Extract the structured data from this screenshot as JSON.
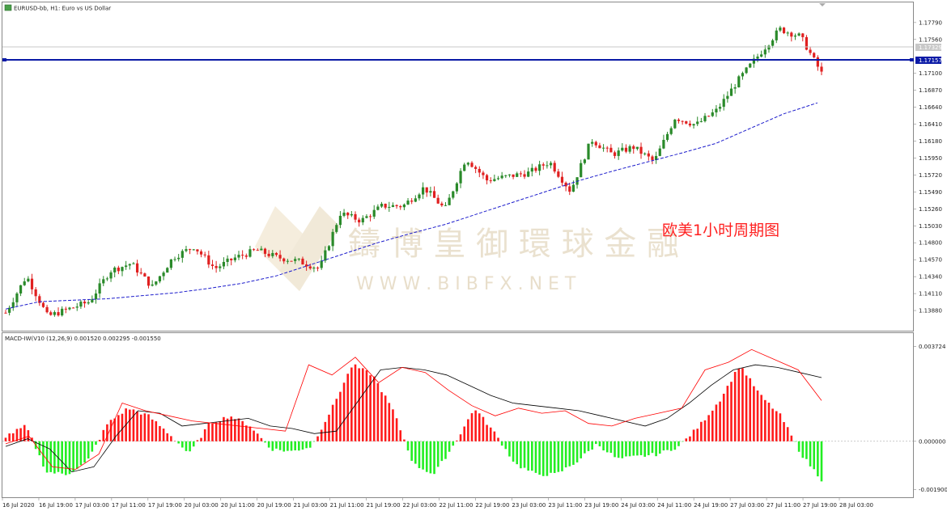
{
  "header": {
    "symbol_line": "EURUSD-bb, H1: Euro vs US Dollar"
  },
  "annotation": "欧美1小时周期图",
  "watermark": {
    "cn": "鑄 博 皇 御 環 球 金 融",
    "url": "W W W . B I B F X . N E T"
  },
  "colors": {
    "bull": "#2a8a2a",
    "bear": "#e02020",
    "ma": "#1c1ccc",
    "hline": "#0a1aa6",
    "price_tag_bg": "#0a1aa6",
    "macd_pos": "#ff1a1a",
    "macd_neg": "#22ee22",
    "signal_black": "#000000",
    "signal_red": "#ff0000"
  },
  "chart_data": [
    {
      "type": "candlestick",
      "title": "EURUSD-bb, H1: Euro vs US Dollar",
      "y_axis_ticks": [
        "1.17790",
        "1.17560",
        "1.17100",
        "1.16870",
        "1.16640",
        "1.16410",
        "1.16180",
        "1.15950",
        "1.15720",
        "1.15490",
        "1.15260",
        "1.15030",
        "1.14800",
        "1.14570",
        "1.14340",
        "1.14110",
        "1.13880"
      ],
      "ylim": [
        1.1365,
        1.1803
      ],
      "current_price_label": "1.17329",
      "horizontal_line_label": "1.17157",
      "horizontal_line_value": 1.17157,
      "x_tick_labels": [
        "16 Jul 2020",
        "16 Jul 19:00",
        "17 Jul 03:00",
        "17 Jul 11:00",
        "17 Jul 19:00",
        "20 Jul 03:00",
        "20 Jul 11:00",
        "20 Jul 19:00",
        "21 Jul 03:00",
        "21 Jul 11:00",
        "21 Jul 19:00",
        "22 Jul 03:00",
        "22 Jul 11:00",
        "22 Jul 19:00",
        "23 Jul 03:00",
        "23 Jul 11:00",
        "23 Jul 19:00",
        "24 Jul 03:00",
        "24 Jul 11:00",
        "24 Jul 19:00",
        "27 Jul 03:00",
        "27 Jul 11:00",
        "27 Jul 19:00",
        "28 Jul 03:00"
      ],
      "close_path": [
        1.1385,
        1.1435,
        1.138,
        1.139,
        1.14,
        1.1442,
        1.1452,
        1.142,
        1.146,
        1.1475,
        1.1445,
        1.146,
        1.147,
        1.146,
        1.1455,
        1.1445,
        1.152,
        1.151,
        1.153,
        1.153,
        1.1555,
        1.1525,
        1.1595,
        1.1565,
        1.157,
        1.1575,
        1.159,
        1.155,
        1.162,
        1.16,
        1.161,
        1.159,
        1.165,
        1.164,
        1.166,
        1.17,
        1.1735,
        1.177,
        1.176,
        1.171
      ],
      "ma_values": [
        1.139,
        1.14,
        1.1402,
        1.1404,
        1.1408,
        1.1412,
        1.1418,
        1.1425,
        1.1435,
        1.145,
        1.1465,
        1.148,
        1.1493,
        1.1505,
        1.152,
        1.1535,
        1.155,
        1.1565,
        1.1578,
        1.159,
        1.1602,
        1.1615,
        1.1635,
        1.1655,
        1.167
      ]
    },
    {
      "type": "histogram",
      "title": "MACD-IW(V10 (12,26,9) 0.001520 0.002295 -0.001550",
      "y_axis_ticks": [
        "0.003724",
        "0.000000",
        "-0.001900"
      ],
      "ylim": [
        -0.0021,
        0.0038
      ],
      "series": [
        {
          "name": "MACD",
          "values": [
            0.0002,
            0.0006,
            -0.0012,
            -0.0013,
            -0.0008,
            0.0007,
            0.0013,
            0.001,
            0.0003,
            -0.0005,
            0.0007,
            0.001,
            0.0006,
            -0.0003,
            -0.0004,
            -0.0002,
            0.0013,
            0.003,
            0.0026,
            0.0012,
            -0.0009,
            -0.0013,
            -0.0001,
            0.0013,
            0.0003,
            -0.0009,
            -0.0013,
            -0.0013,
            -0.0008,
            -0.0001,
            -0.0007,
            -0.0006,
            -0.0005,
            -0.0002,
            0.0006,
            0.0016,
            0.003,
            0.0018,
            0.001,
            -0.0005,
            -0.0015
          ]
        },
        {
          "name": "Signal",
          "values": [
            -0.0002,
            0.0001,
            -0.0003,
            -0.0012,
            -0.001,
            0.0002,
            0.0012,
            0.0011,
            0.0006,
            0.0007,
            0.0008,
            0.0009,
            0.0006,
            0.0005,
            0.0003,
            0.0004,
            0.0016,
            0.0028,
            0.0029,
            0.0028,
            0.0026,
            0.0022,
            0.0018,
            0.0015,
            0.0014,
            0.0013,
            0.0012,
            0.001,
            0.0008,
            0.0006,
            0.0009,
            0.0015,
            0.0022,
            0.0028,
            0.003,
            0.0029,
            0.0027,
            0.0025
          ]
        },
        {
          "name": "Signal2",
          "values": [
            -0.0001,
            0.0002,
            -0.001,
            -0.0011,
            -0.0005,
            0.0015,
            0.0012,
            0.001,
            0.0008,
            0.0007,
            0.0006,
            0.0005,
            0.0004,
            0.003,
            0.0026,
            0.0033,
            0.0023,
            0.0029,
            0.0027,
            0.002,
            0.0014,
            0.001,
            0.0013,
            0.0011,
            0.0012,
            0.0007,
            0.0006,
            0.0009,
            0.0011,
            0.0013,
            0.0028,
            0.0031,
            0.0036,
            0.0032,
            0.0028,
            0.0016
          ]
        }
      ]
    }
  ]
}
